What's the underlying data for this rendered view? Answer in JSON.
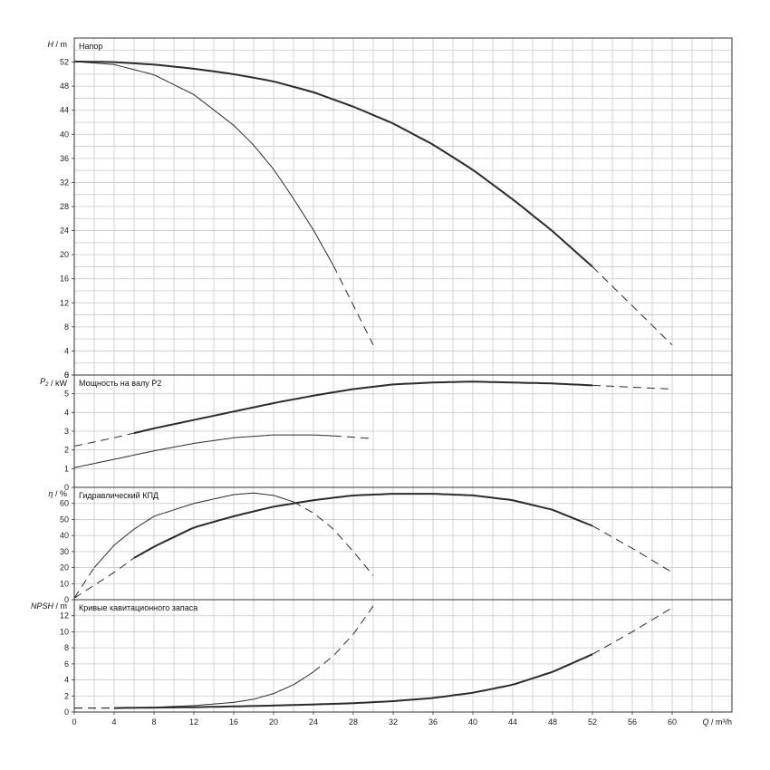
{
  "colors": {
    "grid": "#c8c8c8",
    "frame": "#333333",
    "curve": "#2b2b2b"
  },
  "x_axis": {
    "label_sym": "Q",
    "label_unit": "m³/h",
    "range": [
      0,
      66
    ],
    "ticks": [
      0,
      4,
      8,
      12,
      16,
      20,
      24,
      28,
      32,
      36,
      40,
      44,
      48,
      52,
      56,
      60
    ]
  },
  "chart_data": [
    {
      "type": "line",
      "title": "Напор",
      "ylabel_sym": "H",
      "ylabel_unit": "m",
      "ylim": [
        0,
        56
      ],
      "yticks": [
        0,
        4,
        8,
        12,
        16,
        20,
        24,
        28,
        32,
        36,
        40,
        44,
        48,
        52
      ],
      "grid": true,
      "series": [
        {
          "weight": "bold",
          "solid_to": 52,
          "points": [
            [
              0,
              52.1
            ],
            [
              4,
              52.0
            ],
            [
              8,
              51.6
            ],
            [
              12,
              50.9
            ],
            [
              16,
              50.0
            ],
            [
              20,
              48.8
            ],
            [
              24,
              47.0
            ],
            [
              28,
              44.6
            ],
            [
              32,
              41.8
            ],
            [
              36,
              38.3
            ],
            [
              40,
              34.1
            ],
            [
              44,
              29.2
            ],
            [
              48,
              23.9
            ],
            [
              52,
              18.0
            ],
            [
              56,
              11.5
            ],
            [
              60,
              5.0
            ]
          ]
        },
        {
          "weight": "thin",
          "solid_to": 26,
          "points": [
            [
              0,
              52.1
            ],
            [
              4,
              51.6
            ],
            [
              8,
              49.9
            ],
            [
              12,
              46.6
            ],
            [
              16,
              41.5
            ],
            [
              18,
              38.2
            ],
            [
              20,
              34.2
            ],
            [
              22,
              29.3
            ],
            [
              24,
              24.1
            ],
            [
              26,
              18.2
            ],
            [
              28,
              11.6
            ],
            [
              30,
              5.0
            ]
          ]
        }
      ]
    },
    {
      "type": "line",
      "title": "Мощность на валу P2",
      "ylabel_sym": "P",
      "ylabel_sub": "2",
      "ylabel_unit": "kW",
      "ylim": [
        0,
        6
      ],
      "yticks": [
        0,
        1,
        2,
        3,
        4,
        5,
        6
      ],
      "grid": true,
      "series": [
        {
          "weight": "bold",
          "solid_to": 52,
          "solid_from": 6,
          "points": [
            [
              0,
              2.2
            ],
            [
              4,
              2.65
            ],
            [
              8,
              3.15
            ],
            [
              12,
              3.6
            ],
            [
              16,
              4.05
            ],
            [
              20,
              4.5
            ],
            [
              24,
              4.9
            ],
            [
              28,
              5.25
            ],
            [
              32,
              5.5
            ],
            [
              36,
              5.6
            ],
            [
              40,
              5.65
            ],
            [
              44,
              5.6
            ],
            [
              48,
              5.55
            ],
            [
              52,
              5.45
            ],
            [
              56,
              5.35
            ],
            [
              60,
              5.25
            ]
          ]
        },
        {
          "weight": "thin",
          "solid_to": 26,
          "points": [
            [
              0,
              1.05
            ],
            [
              4,
              1.5
            ],
            [
              8,
              1.95
            ],
            [
              12,
              2.35
            ],
            [
              16,
              2.65
            ],
            [
              20,
              2.8
            ],
            [
              24,
              2.8
            ],
            [
              26,
              2.75
            ],
            [
              28,
              2.68
            ],
            [
              30,
              2.6
            ]
          ]
        }
      ]
    },
    {
      "type": "line",
      "title": "Гидравлический КПД",
      "ylabel_sym": "η",
      "ylabel_unit": "%",
      "ylim": [
        0,
        70
      ],
      "yticks": [
        0,
        10,
        20,
        30,
        40,
        50,
        60
      ],
      "grid": true,
      "series": [
        {
          "weight": "bold",
          "solid_to": 52,
          "solid_from": 6,
          "points": [
            [
              0,
              1
            ],
            [
              2,
              9
            ],
            [
              4,
              17
            ],
            [
              6,
              26
            ],
            [
              8,
              33
            ],
            [
              12,
              45
            ],
            [
              16,
              52
            ],
            [
              20,
              58
            ],
            [
              24,
              62
            ],
            [
              28,
              65
            ],
            [
              32,
              66
            ],
            [
              36,
              66
            ],
            [
              40,
              65
            ],
            [
              44,
              62
            ],
            [
              48,
              56
            ],
            [
              52,
              46
            ],
            [
              56,
              32
            ],
            [
              60,
              17
            ]
          ]
        },
        {
          "weight": "thin",
          "solid_to": 22,
          "solid_from": 2,
          "points": [
            [
              0,
              1
            ],
            [
              2,
              20
            ],
            [
              4,
              34
            ],
            [
              6,
              44
            ],
            [
              8,
              52
            ],
            [
              12,
              60
            ],
            [
              16,
              65.5
            ],
            [
              18,
              66.5
            ],
            [
              20,
              65
            ],
            [
              22,
              61
            ],
            [
              24,
              54
            ],
            [
              26,
              44
            ],
            [
              28,
              30
            ],
            [
              30,
              15
            ]
          ]
        }
      ]
    },
    {
      "type": "line",
      "title": "Кривые кавитационного запаса",
      "ylabel_sym": "NPSH",
      "ylabel_unit": "m",
      "ylim": [
        0,
        14
      ],
      "yticks": [
        0,
        2,
        4,
        6,
        8,
        10,
        12
      ],
      "grid": true,
      "series": [
        {
          "weight": "bold",
          "solid_to": 52,
          "solid_from": 4,
          "points": [
            [
              0,
              0.5
            ],
            [
              4,
              0.5
            ],
            [
              8,
              0.55
            ],
            [
              12,
              0.6
            ],
            [
              16,
              0.7
            ],
            [
              20,
              0.8
            ],
            [
              24,
              0.95
            ],
            [
              28,
              1.1
            ],
            [
              32,
              1.35
            ],
            [
              36,
              1.75
            ],
            [
              40,
              2.4
            ],
            [
              44,
              3.4
            ],
            [
              48,
              5.0
            ],
            [
              52,
              7.2
            ],
            [
              56,
              10.0
            ],
            [
              60,
              13.0
            ]
          ]
        },
        {
          "weight": "thin",
          "solid_to": 24,
          "solid_from": 4,
          "points": [
            [
              0,
              0.5
            ],
            [
              4,
              0.5
            ],
            [
              8,
              0.6
            ],
            [
              12,
              0.8
            ],
            [
              16,
              1.2
            ],
            [
              18,
              1.6
            ],
            [
              20,
              2.3
            ],
            [
              22,
              3.4
            ],
            [
              24,
              5.0
            ],
            [
              26,
              7.0
            ],
            [
              28,
              9.7
            ],
            [
              30,
              13.2
            ]
          ]
        }
      ]
    }
  ]
}
